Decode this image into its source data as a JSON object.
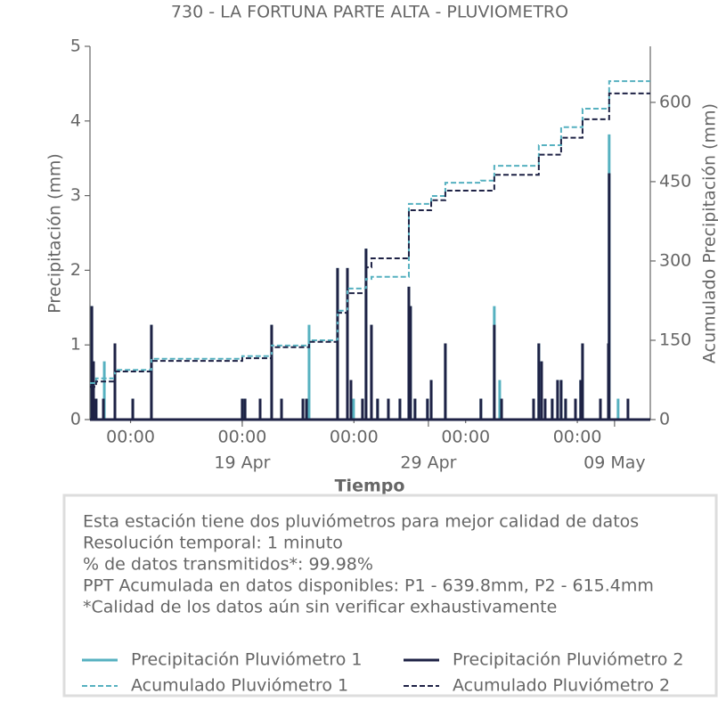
{
  "chart_data": {
    "type": "line",
    "title": "730 - LA FORTUNA PARTE ALTA - PLUVIOMETRO",
    "xlabel": "Tiempo",
    "ylabel": "Precipitación (mm)",
    "y2label": "Acumulado Precipitación (mm)",
    "xlim": [
      10.82,
      40.92
    ],
    "ylim": [
      0,
      5
    ],
    "yticks": [
      0,
      1,
      2,
      3,
      4,
      5
    ],
    "y2lim": [
      0,
      706
    ],
    "y2ticks": [
      0,
      150,
      300,
      450,
      600
    ],
    "xticks": [
      {
        "value": 13,
        "label": "00:00"
      },
      {
        "value": 19,
        "label": "00:00"
      },
      {
        "value": 25,
        "label": "00:00"
      },
      {
        "value": 31,
        "label": "00:00"
      },
      {
        "value": 37,
        "label": "00:00"
      }
    ],
    "xticks_secondary": [
      {
        "value": 19,
        "label": "19 Apr"
      },
      {
        "value": 29,
        "label": "29 Apr"
      },
      {
        "value": 39,
        "label": "09 May"
      }
    ],
    "series": [
      {
        "name": "Precipitación Pluviómetro 1",
        "color": "#56b1c0",
        "drawstyle": "stem",
        "axis": "y",
        "x": [
          10.92,
          11.01,
          11.15,
          11.59,
          12.16,
          13.12,
          14.12,
          19.0,
          19.15,
          19.96,
          20.58,
          21.11,
          22.26,
          22.45,
          22.59,
          24.12,
          24.65,
          24.98,
          25.46,
          25.65,
          25.94,
          26.27,
          26.85,
          27.47,
          27.95,
          28.04,
          28.28,
          28.95,
          29.15,
          29.91,
          31.82,
          32.54,
          32.83,
          32.93,
          34.65,
          34.93,
          35.08,
          35.27,
          35.65,
          35.94,
          36.13,
          36.37,
          36.9,
          37.18,
          37.28,
          38.24,
          38.67,
          38.71,
          39.19
        ],
        "values": [
          1.52,
          0.78,
          0.28,
          0.78,
          1.02,
          0.28,
          1.27,
          0.28,
          0.28,
          0.28,
          1.27,
          0.28,
          0.28,
          0.28,
          1.27,
          2.03,
          2.03,
          0.28,
          0.28,
          2.29,
          1.27,
          0.28,
          0.28,
          0.28,
          1.78,
          1.52,
          0.28,
          0.28,
          0.53,
          1.02,
          0.28,
          1.52,
          0.53,
          0.28,
          0.28,
          1.02,
          0.78,
          0.28,
          0.28,
          0.53,
          0.53,
          0.28,
          0.28,
          0.53,
          1.02,
          0.28,
          1.02,
          3.82,
          0.28
        ]
      },
      {
        "name": "Precipitación Pluviómetro 2",
        "color": "#1e2245",
        "drawstyle": "stem",
        "axis": "y",
        "x": [
          10.92,
          11.01,
          11.15,
          11.54,
          12.16,
          13.12,
          14.12,
          19.0,
          19.15,
          19.96,
          20.58,
          21.11,
          22.26,
          22.45,
          24.12,
          24.65,
          24.84,
          25.46,
          25.65,
          25.94,
          26.27,
          26.85,
          27.47,
          27.95,
          28.04,
          28.28,
          28.95,
          29.15,
          29.91,
          31.82,
          32.54,
          32.93,
          34.65,
          34.93,
          35.08,
          35.27,
          35.65,
          35.94,
          36.13,
          36.37,
          36.9,
          37.18,
          37.28,
          38.24,
          38.67,
          38.71,
          39.72
        ],
        "values": [
          1.52,
          0.78,
          0.28,
          0.28,
          1.02,
          0.28,
          1.27,
          0.28,
          0.28,
          0.28,
          1.27,
          0.28,
          0.28,
          0.28,
          2.03,
          2.03,
          0.53,
          0.28,
          2.29,
          1.27,
          0.28,
          0.28,
          0.28,
          1.78,
          1.52,
          0.28,
          0.28,
          0.53,
          1.02,
          0.28,
          1.27,
          0.28,
          0.28,
          1.02,
          0.78,
          0.28,
          0.28,
          0.53,
          0.53,
          0.28,
          0.28,
          0.53,
          1.02,
          0.28,
          1.02,
          3.3,
          0.28
        ]
      },
      {
        "name": "Acumulado Pluviómetro 1",
        "color": "#56b1c0",
        "drawstyle": "steps-post",
        "axis": "y2",
        "x": [
          10.82,
          11.15,
          12.16,
          14.12,
          19.0,
          20.58,
          22.59,
          24.12,
          24.65,
          25.65,
          25.94,
          27.95,
          29.15,
          29.91,
          31.82,
          32.54,
          34.93,
          36.13,
          37.28,
          38.71
        ],
        "values": [
          69,
          78,
          94,
          115,
          120,
          140,
          150,
          206,
          248,
          266,
          270,
          408,
          423,
          448,
          452,
          480,
          519,
          553,
          588,
          640
        ]
      },
      {
        "name": "Acumulado Pluviómetro 2",
        "color": "#1e2245",
        "drawstyle": "steps-post",
        "axis": "y2",
        "x": [
          10.82,
          11.15,
          12.16,
          14.12,
          19.0,
          20.58,
          22.59,
          24.12,
          24.65,
          25.65,
          25.94,
          27.95,
          29.15,
          29.91,
          32.54,
          34.93,
          36.13,
          37.28,
          38.71
        ],
        "values": [
          62,
          72,
          91,
          111,
          116,
          137,
          147,
          202,
          239,
          288,
          305,
          396,
          415,
          433,
          463,
          501,
          533,
          568,
          617
        ]
      }
    ],
    "notes": [
      "Esta estación tiene dos pluviómetros para mejor calidad de datos",
      "Resolución temporal: 1 minuto",
      "% de datos transmitidos*: 99.98%",
      "PPT Acumulada en datos disponibles: P1 - 639.8mm, P2 - 615.4mm",
      "*Calidad de los datos aún sin verificar exhaustivamente"
    ]
  }
}
